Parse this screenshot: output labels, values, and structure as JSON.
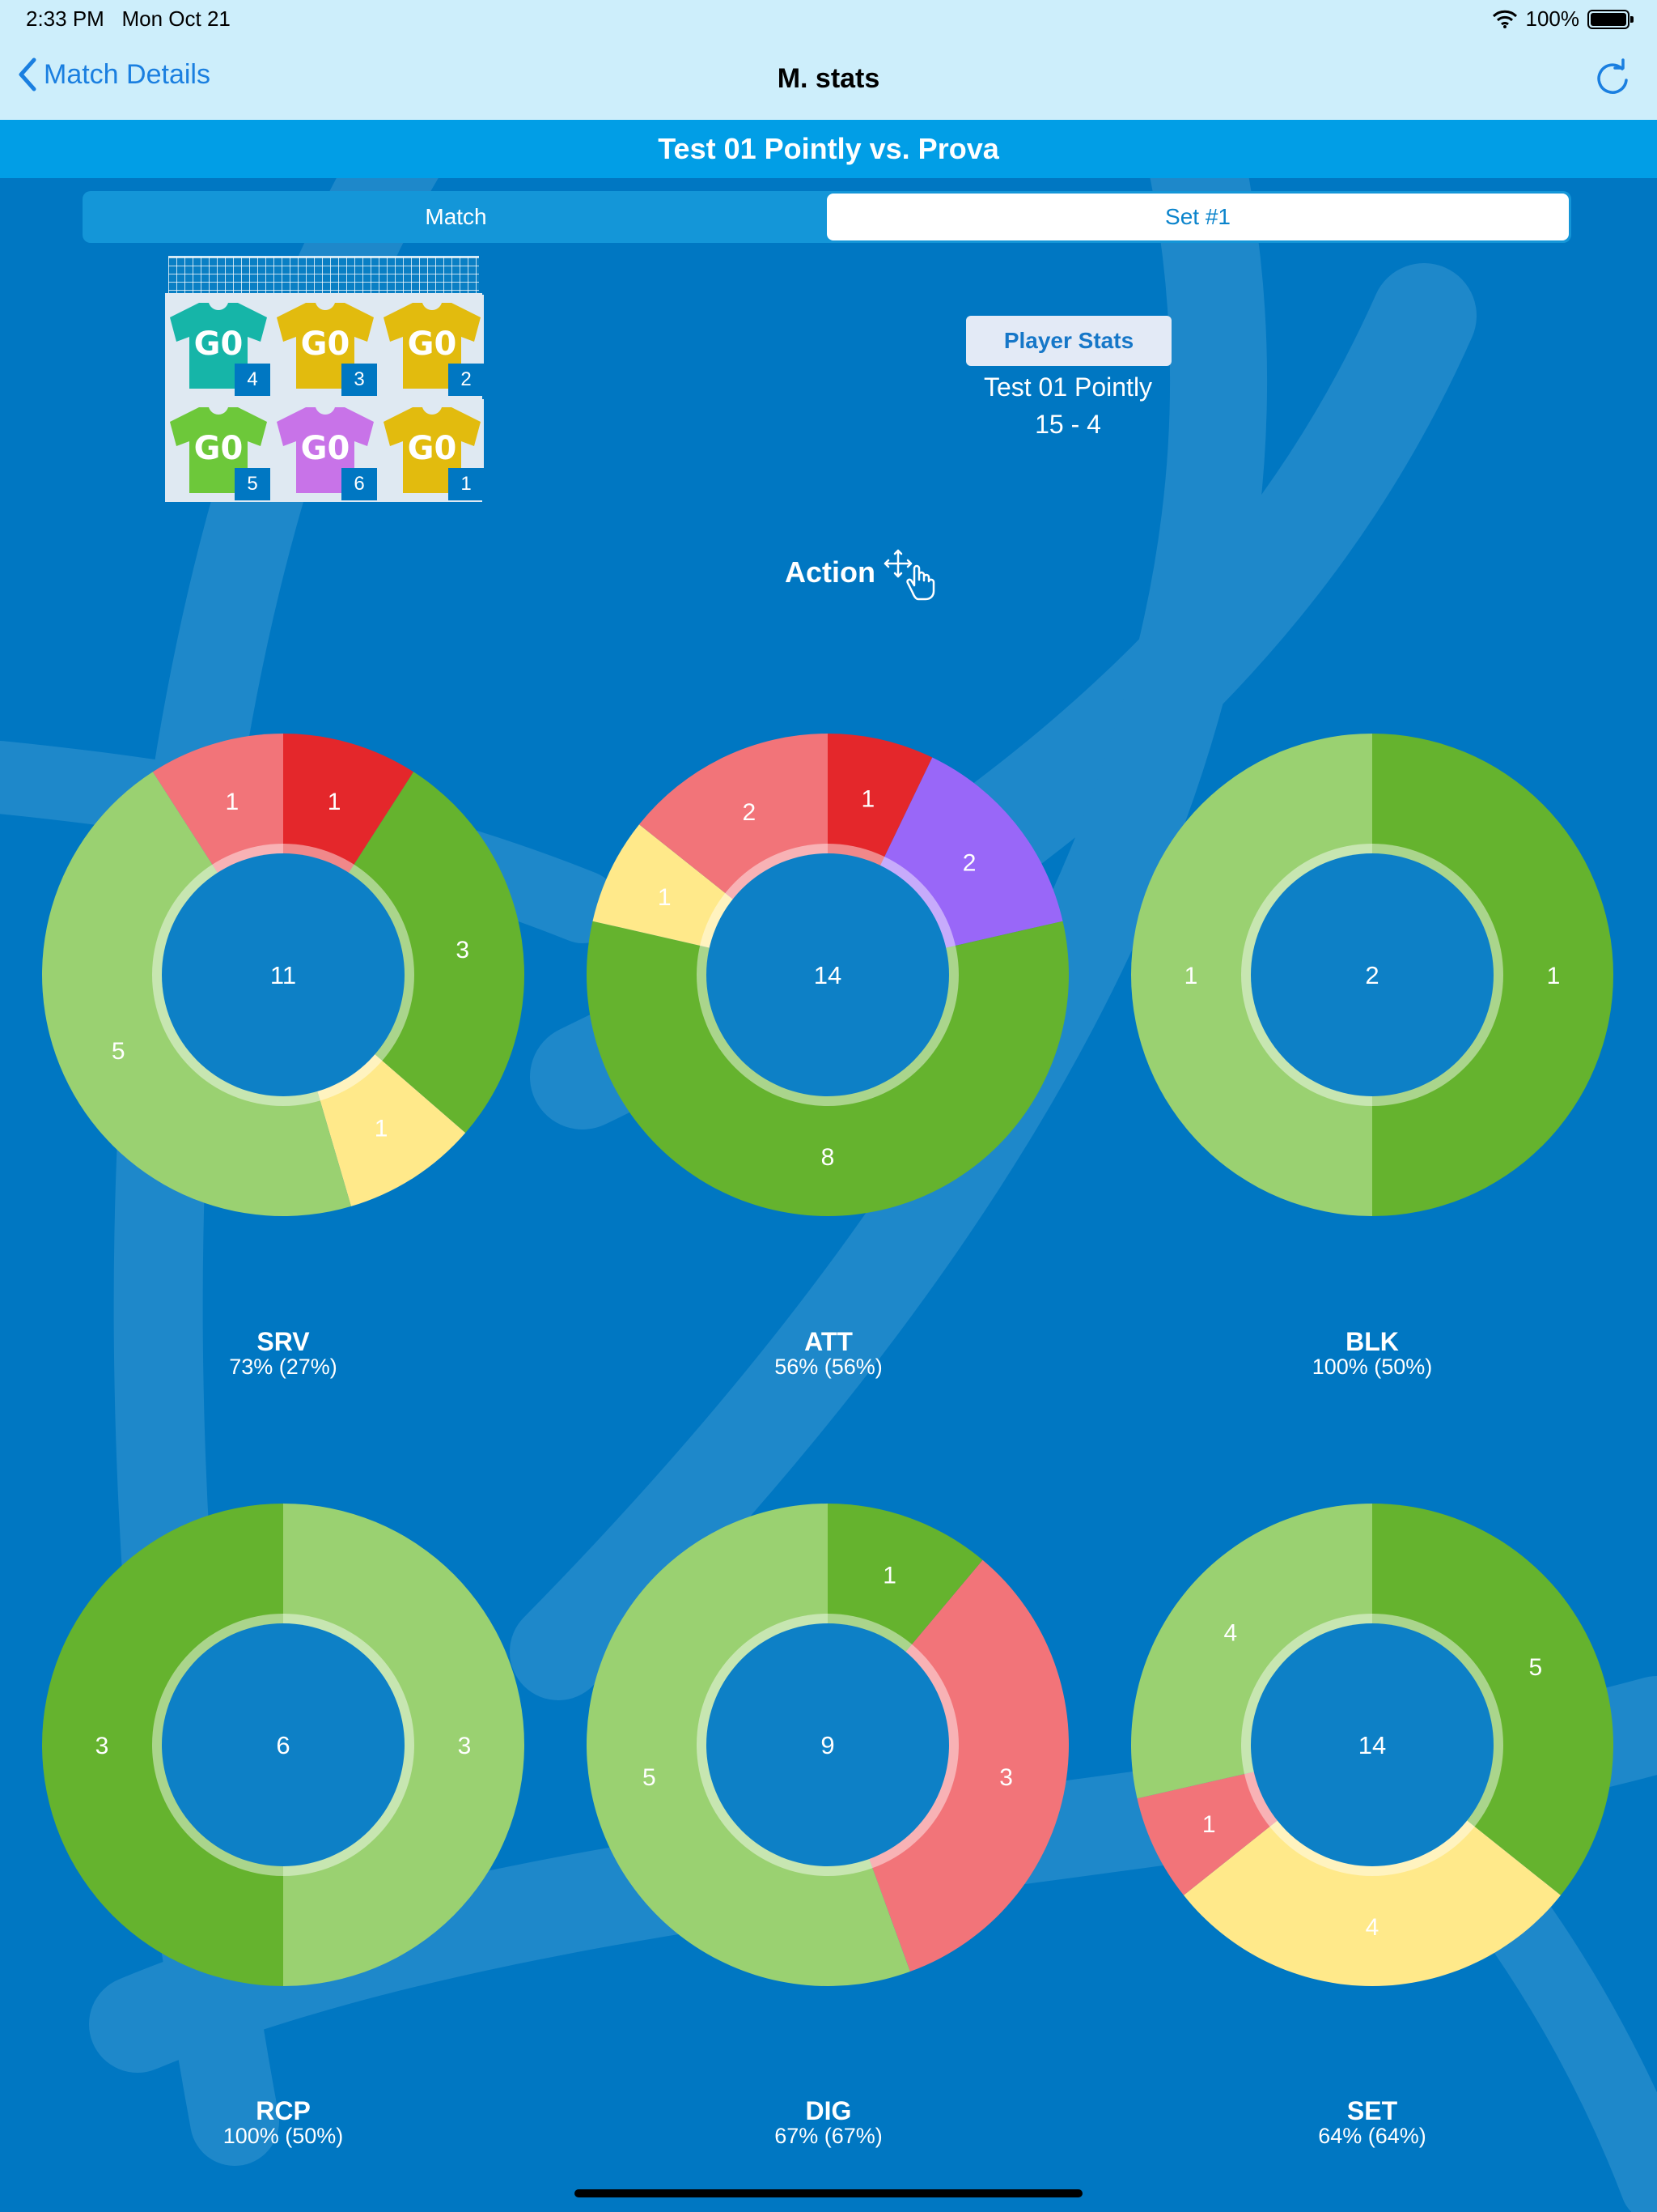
{
  "status_bar": {
    "time": "2:33 PM",
    "date": "Mon Oct 21",
    "battery": "100%"
  },
  "nav": {
    "back_label": "Match Details",
    "title": "M. stats"
  },
  "match_title": "Test 01 Pointly vs. Prova",
  "segments": {
    "options": [
      "Match",
      "Set  #1"
    ],
    "selected": "Set  #1"
  },
  "rotation": {
    "slots": [
      {
        "code": "G0",
        "number": "4",
        "color": "#16b5a8"
      },
      {
        "code": "G0",
        "number": "3",
        "color": "#e2bb0e"
      },
      {
        "code": "G0",
        "number": "2",
        "color": "#e2bb0e"
      },
      {
        "code": "G0",
        "number": "5",
        "color": "#6dc83a"
      },
      {
        "code": "G0",
        "number": "6",
        "color": "#c873e8"
      },
      {
        "code": "G0",
        "number": "1",
        "color": "#e2bb0e"
      }
    ]
  },
  "player_stats_button": "Player Stats",
  "team": {
    "name": "Test 01 Pointly",
    "score": "15 - 4"
  },
  "action_label": "Action",
  "colors": {
    "dark_green": "#65b32e",
    "light_green": "#9ad171",
    "yellow": "#ffe98a",
    "pink": "#f27479",
    "red": "#e4272b",
    "purple": "#9967f8"
  },
  "chart_data": [
    {
      "type": "pie",
      "title": "SRV",
      "subtitle": "73% (27%)",
      "total": "11",
      "slices": [
        {
          "value": 1,
          "color": "#e4272b"
        },
        {
          "value": 3,
          "color": "#65b32e"
        },
        {
          "value": 1,
          "color": "#ffe98a"
        },
        {
          "value": 5,
          "color": "#9ad171"
        },
        {
          "value": 1,
          "color": "#f27479"
        }
      ]
    },
    {
      "type": "pie",
      "title": "ATT",
      "subtitle": "56% (56%)",
      "total": "14",
      "slices": [
        {
          "value": 1,
          "color": "#e4272b"
        },
        {
          "value": 2,
          "color": "#9967f8"
        },
        {
          "value": 8,
          "color": "#65b32e"
        },
        {
          "value": 1,
          "color": "#ffe98a"
        },
        {
          "value": 2,
          "color": "#f27479"
        }
      ]
    },
    {
      "type": "pie",
      "title": "BLK",
      "subtitle": "100% (50%)",
      "total": "2",
      "slices": [
        {
          "value": 1,
          "color": "#65b32e"
        },
        {
          "value": 1,
          "color": "#9ad171"
        }
      ]
    },
    {
      "type": "pie",
      "title": "RCP",
      "subtitle": "100% (50%)",
      "total": "6",
      "slices": [
        {
          "value": 3,
          "color": "#9ad171"
        },
        {
          "value": 3,
          "color": "#65b32e"
        }
      ]
    },
    {
      "type": "pie",
      "title": "DIG",
      "subtitle": "67% (67%)",
      "total": "9",
      "slices": [
        {
          "value": 1,
          "color": "#65b32e"
        },
        {
          "value": 3,
          "color": "#f27479"
        },
        {
          "value": 5,
          "color": "#9ad171"
        }
      ]
    },
    {
      "type": "pie",
      "title": "SET",
      "subtitle": "64% (64%)",
      "total": "14",
      "slices": [
        {
          "value": 5,
          "color": "#65b32e"
        },
        {
          "value": 4,
          "color": "#ffe98a"
        },
        {
          "value": 1,
          "color": "#f27479"
        },
        {
          "value": 4,
          "color": "#9ad171"
        }
      ]
    }
  ]
}
